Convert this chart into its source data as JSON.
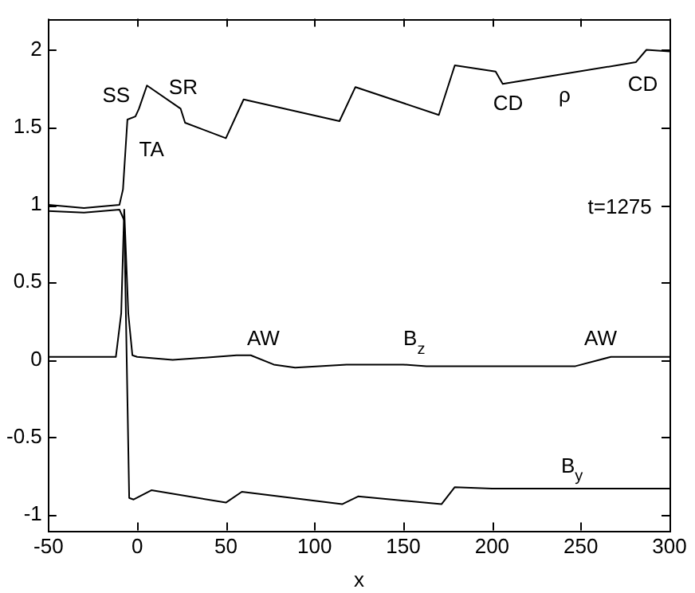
{
  "chart_data": {
    "type": "line",
    "xlabel": "x",
    "xlim": [
      -50,
      300
    ],
    "xticks": [
      -50,
      0,
      50,
      100,
      150,
      200,
      250,
      300
    ],
    "ylim": [
      -1.1,
      2.2
    ],
    "yticks": [
      -1,
      -0.5,
      0,
      0.5,
      1,
      1.5,
      2
    ],
    "grid": false,
    "legend": false,
    "marker": "none",
    "line_style": "solid",
    "series": [
      {
        "color": "#000000",
        "x": [
          -50,
          -30,
          -10,
          -8,
          -5.5,
          -1,
          1,
          5.5,
          24.5,
          27,
          50,
          60,
          114,
          123,
          170,
          179,
          202,
          206,
          281,
          287,
          300
        ],
        "values": [
          1.0,
          0.98,
          1.0,
          1.1,
          1.55,
          1.57,
          1.62,
          1.77,
          1.62,
          1.53,
          1.43,
          1.68,
          1.54,
          1.76,
          1.58,
          1.9,
          1.86,
          1.78,
          1.92,
          2.0,
          1.99
        ]
      },
      {
        "color": "#000000",
        "x": [
          -50,
          -12,
          -9,
          -7.3,
          -5,
          -2.7,
          0,
          20,
          56,
          64,
          77,
          89,
          118,
          132,
          150,
          163,
          247,
          267,
          300
        ],
        "values": [
          0.02,
          0.02,
          0.3,
          0.97,
          0.3,
          0.03,
          0.02,
          0.0,
          0.03,
          0.03,
          -0.03,
          -0.05,
          -0.03,
          -0.03,
          -0.03,
          -0.04,
          -0.04,
          0.02,
          0.02
        ]
      },
      {
        "color": "#000000",
        "x": [
          -50,
          -30,
          -10,
          -7.3,
          -4.5,
          -2,
          8,
          50,
          59,
          115.5,
          124.5,
          171.5,
          179,
          200,
          300
        ],
        "values": [
          0.96,
          0.95,
          0.97,
          0.9,
          -0.89,
          -0.9,
          -0.84,
          -0.92,
          -0.85,
          -0.93,
          -0.88,
          -0.93,
          -0.82,
          -0.83,
          -0.83
        ]
      }
    ],
    "annotations": [
      "SS",
      "SR",
      "TA",
      "CD",
      "ρ",
      "CD",
      "t=1275",
      "AW",
      "B$_{z}$",
      "AW",
      "B$_{y}$"
    ]
  }
}
